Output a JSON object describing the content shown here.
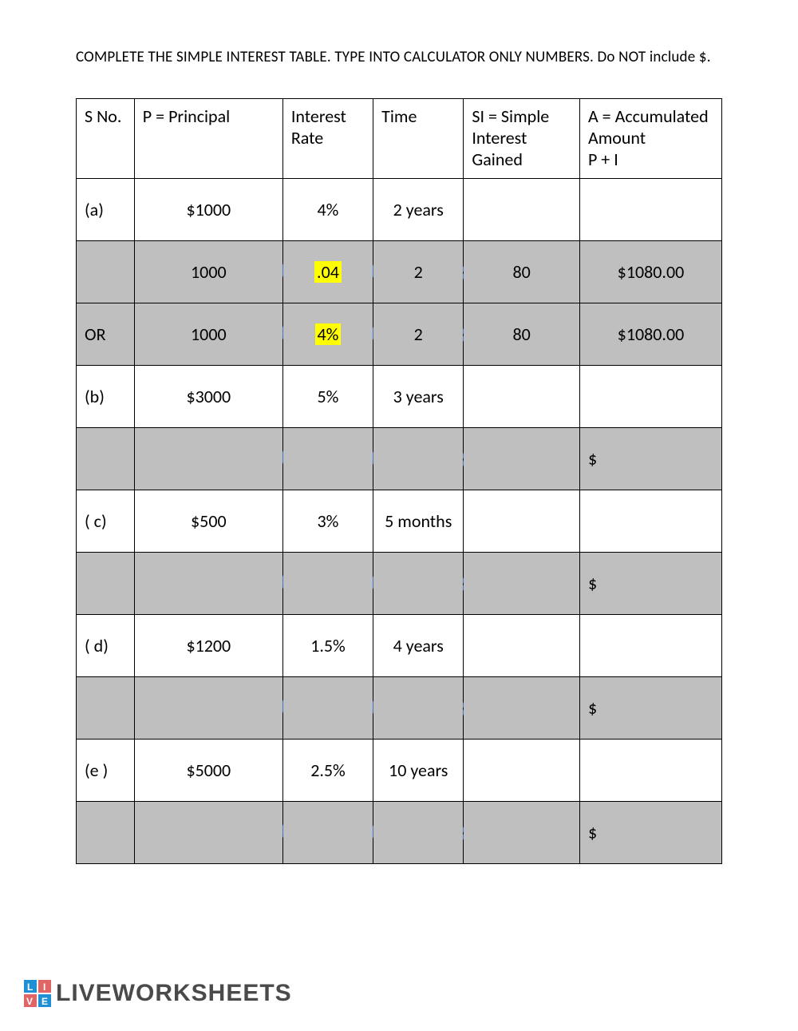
{
  "instructions": "COMPLETE THE SIMPLE INTEREST TABLE.  TYPE INTO CALCULATOR ONLY NUMBERS.   Do NOT include $.",
  "columns": {
    "sno": "S No.",
    "principal": "P = Principal",
    "rate": "Interest Rate",
    "time": "Time",
    "si": "SI = Simple Interest Gained",
    "accum": "A = Accumulated Amount\nP + I"
  },
  "rows": [
    {
      "type": "white",
      "sno": "(a)",
      "principal": "$1000",
      "rate": "4%",
      "time": "2 years",
      "si": "",
      "accum": ""
    },
    {
      "type": "gray",
      "sno": "",
      "principal": "1000",
      "rate_hl": ".04",
      "time": "2",
      "si": "80",
      "accum": "$1080.00",
      "ops": true
    },
    {
      "type": "gray",
      "sno": "OR",
      "principal": "1000",
      "rate_hl": "4%",
      "time": "2",
      "si": "80",
      "accum": "$1080.00",
      "ops": true
    },
    {
      "type": "white",
      "sno": "(b)",
      "principal": "$3000",
      "rate": "5%",
      "time": "3 years",
      "si": "",
      "accum": ""
    },
    {
      "type": "gray",
      "sno": "",
      "principal": "",
      "rate": "",
      "time": "",
      "si": "",
      "accum": "$",
      "ops": true,
      "accum_align": "left"
    },
    {
      "type": "white",
      "sno": "( c)",
      "principal": "$500",
      "rate": "3%",
      "time": "5 months",
      "si": "",
      "accum": ""
    },
    {
      "type": "gray",
      "sno": "",
      "principal": "",
      "rate": "",
      "time": "",
      "si": "",
      "accum": "$",
      "ops": true,
      "accum_align": "left"
    },
    {
      "type": "white",
      "sno": "( d)",
      "principal": "$1200",
      "rate": "1.5%",
      "time": "4 years",
      "si": "",
      "accum": ""
    },
    {
      "type": "gray",
      "sno": "",
      "principal": "",
      "rate": "",
      "time": "",
      "si": "",
      "accum": "$",
      "ops": true,
      "accum_align": "left"
    },
    {
      "type": "white",
      "sno": "(e )",
      "principal": "$5000",
      "rate": "2.5%",
      "time": "10 years",
      "si": "",
      "accum": ""
    },
    {
      "type": "gray",
      "sno": "",
      "principal": "",
      "rate": "",
      "time": "",
      "si": "",
      "accum": "$",
      "ops": true,
      "accum_align": "left"
    }
  ],
  "brand": "LIVEWORKSHEETS",
  "colors": {
    "icon_fill": "#4472c4",
    "icon_stroke": "#2f528f",
    "gray_row": "#bfbfbf",
    "highlight": "#ffff00",
    "text": "#000000",
    "brand_text": "#4a4a4a",
    "brand_blue": "#1f8fd6",
    "brand_red": "#e06666"
  }
}
